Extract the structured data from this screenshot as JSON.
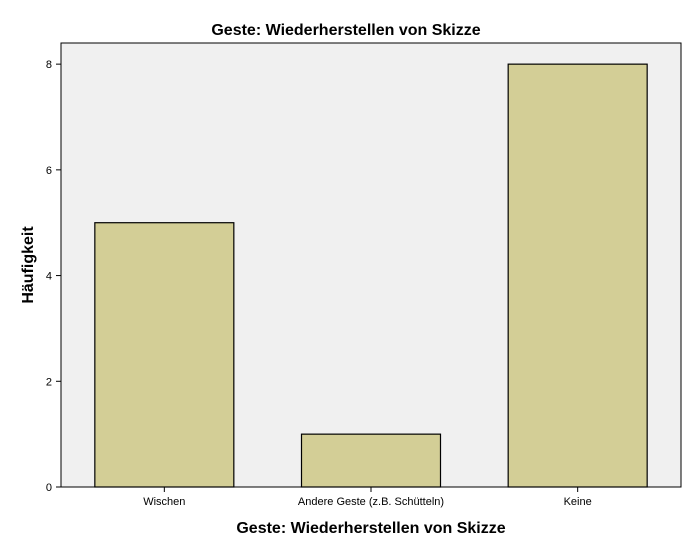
{
  "chart_data": {
    "type": "bar",
    "title": "Geste: Wiederherstellen von Skizze",
    "xlabel": "Geste: Wiederherstellen von Skizze",
    "ylabel": "Häufigkeit",
    "categories": [
      "Wischen",
      "Andere Geste (z.B. Schütteln)",
      "Keine"
    ],
    "values": [
      5,
      1,
      8
    ],
    "ylim": [
      0,
      8.4
    ],
    "yticks": [
      "0",
      "2",
      "4",
      "6",
      "8"
    ],
    "grid": false,
    "colors": {
      "bar_fill": "#d3ce96",
      "bar_stroke": "#000000",
      "plot_background": "#f0f0f0"
    }
  }
}
